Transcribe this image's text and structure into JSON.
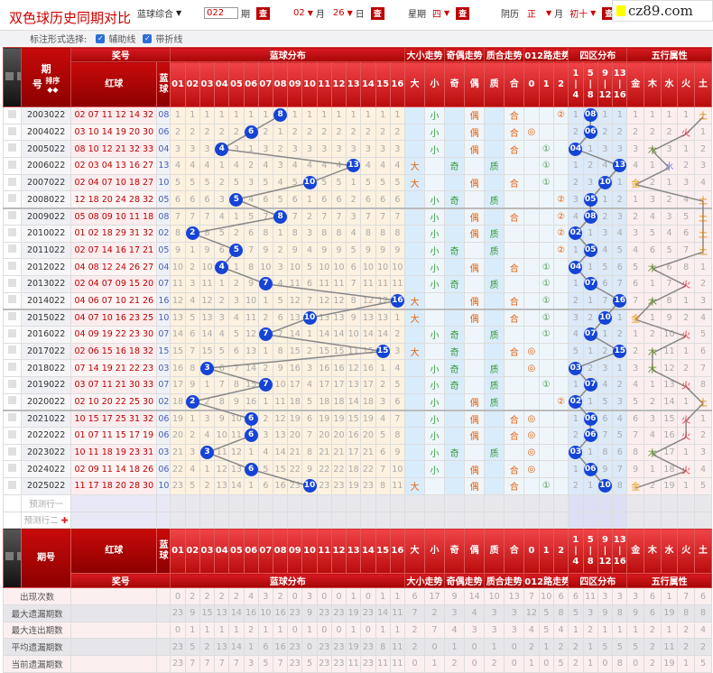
{
  "header": {
    "title": "双色球历史同期对比",
    "lottery_select": "蓝球综合",
    "period_value": "022",
    "period_label": "期",
    "query": "查",
    "month": "02",
    "month_label": "月",
    "day": "26",
    "day_label": "日",
    "weekday_label": "星期",
    "weekday": "四",
    "lunar_label": "阴历",
    "lunar_month": "正",
    "lunar_month_label": "月",
    "lunar_day": "初十",
    "logo": "cz89.com"
  },
  "options": {
    "label": "标注形式选择:",
    "aux_line": "辅助线",
    "fold_line": "带折线",
    "aux_checked": true,
    "fold_checked": true
  },
  "table": {
    "groups": {
      "period": "期号",
      "sort": "排序",
      "prize": "奖号",
      "red": "红球",
      "blue": "蓝球",
      "blue_dist": "蓝球分布",
      "size": "大小走势",
      "parity": "奇偶走势",
      "prime": "质合走势",
      "mod": "012路走势",
      "zone": "四区分布",
      "wuxing": "五行属性"
    },
    "blue_cols": [
      "01",
      "02",
      "03",
      "04",
      "05",
      "06",
      "07",
      "08",
      "09",
      "10",
      "11",
      "12",
      "13",
      "14",
      "15",
      "16"
    ],
    "size_cols": [
      "大",
      "小"
    ],
    "parity_cols": [
      "奇",
      "偶"
    ],
    "prime_cols": [
      "质",
      "合"
    ],
    "mod_cols": [
      "0",
      "1",
      "2"
    ],
    "mod_marks": [
      "◎",
      "①",
      "②"
    ],
    "zone_cols": [
      [
        "1",
        "|",
        "4"
      ],
      [
        "5",
        "|",
        "8"
      ],
      [
        "9",
        "|",
        "12"
      ],
      [
        "13",
        "|",
        "16"
      ]
    ],
    "wuxing_cols": [
      "金",
      "木",
      "水",
      "火",
      "土"
    ],
    "rows": [
      {
        "period": "2003022",
        "red": "02 07 11 12 14 32",
        "blue": "08",
        "element": "土"
      },
      {
        "period": "2004022",
        "red": "03 10 14 19 20 30",
        "blue": "06",
        "element": "火"
      },
      {
        "period": "2005022",
        "red": "08 10 12 21 32 33",
        "blue": "04",
        "element": "木"
      },
      {
        "period": "2006022",
        "red": "02 03 04 13 16 27",
        "blue": "13",
        "element": "水"
      },
      {
        "period": "2007022",
        "red": "02 04 07 10 18 27",
        "blue": "10",
        "element": "金"
      },
      {
        "period": "2008022",
        "red": "12 18 20 24 28 32",
        "blue": "05",
        "element": "土"
      },
      {
        "period": "2009022",
        "red": "05 08 09 10 11 18",
        "blue": "08",
        "element": "土"
      },
      {
        "period": "2010022",
        "red": "01 02 18 29 31 32",
        "blue": "02",
        "element": "土"
      },
      {
        "period": "2011022",
        "red": "02 07 14 16 17 21",
        "blue": "05",
        "element": "土"
      },
      {
        "period": "2012022",
        "red": "04 08 12 24 26 27",
        "blue": "04",
        "element": "木"
      },
      {
        "period": "2013022",
        "red": "02 04 07 09 15 20",
        "blue": "07",
        "element": "火"
      },
      {
        "period": "2014022",
        "red": "04 06 07 10 21 26",
        "blue": "16",
        "element": "木"
      },
      {
        "period": "2015022",
        "red": "04 07 10 16 23 25",
        "blue": "10",
        "element": "金"
      },
      {
        "period": "2016022",
        "red": "04 09 19 22 23 30",
        "blue": "07",
        "element": "火"
      },
      {
        "period": "2017022",
        "red": "02 06 15 16 18 32",
        "blue": "15",
        "element": "木"
      },
      {
        "period": "2018022",
        "red": "07 14 19 21 22 23",
        "blue": "03",
        "element": "木"
      },
      {
        "period": "2019022",
        "red": "03 07 11 21 30 33",
        "blue": "07",
        "element": "火"
      },
      {
        "period": "2020022",
        "red": "02 10 20 22 25 30",
        "blue": "02",
        "element": "土"
      },
      {
        "period": "2021022",
        "red": "10 15 17 25 31 32",
        "blue": "06",
        "element": "火"
      },
      {
        "period": "2022022",
        "red": "01 07 11 15 17 19",
        "blue": "06",
        "element": "火"
      },
      {
        "period": "2023022",
        "red": "10 11 18 19 23 31",
        "blue": "03",
        "element": "木"
      },
      {
        "period": "2024022",
        "red": "02 09 11 14 18 26",
        "blue": "06",
        "element": "火"
      },
      {
        "period": "2025022",
        "red": "11 17 18 20 28 30",
        "blue": "10",
        "element": "金"
      }
    ],
    "predict": [
      "预测行一",
      "预测行二"
    ],
    "stats": [
      {
        "label": "出现次数",
        "values": [
          0,
          2,
          2,
          2,
          2,
          4,
          3,
          2,
          0,
          3,
          0,
          0,
          1,
          0,
          1,
          1,
          6,
          17,
          9,
          14,
          10,
          13,
          7,
          10,
          6,
          6,
          11,
          3,
          3,
          3,
          6,
          1,
          7,
          6
        ]
      },
      {
        "label": "最大遗漏期数",
        "values": [
          23,
          9,
          15,
          13,
          14,
          16,
          10,
          16,
          23,
          9,
          23,
          23,
          19,
          23,
          14,
          11,
          7,
          2,
          3,
          4,
          3,
          3,
          12,
          5,
          8,
          5,
          3,
          9,
          8,
          9,
          6,
          19,
          8,
          8
        ]
      },
      {
        "label": "最大连出期数",
        "values": [
          0,
          1,
          1,
          1,
          1,
          2,
          1,
          1,
          0,
          1,
          0,
          0,
          1,
          0,
          1,
          1,
          2,
          7,
          4,
          3,
          3,
          3,
          4,
          5,
          4,
          1,
          2,
          1,
          1,
          1,
          2,
          1,
          2,
          4
        ]
      },
      {
        "label": "平均遗漏期数",
        "values": [
          23,
          5,
          2,
          13,
          14,
          1,
          6,
          16,
          23,
          0,
          23,
          23,
          19,
          23,
          8,
          11,
          2,
          0,
          1,
          0,
          1,
          0,
          2,
          1,
          2,
          2,
          1,
          5,
          5,
          5,
          2,
          11,
          2,
          2
        ]
      },
      {
        "label": "当前遗漏期数",
        "values": [
          23,
          7,
          7,
          7,
          7,
          3,
          5,
          7,
          23,
          5,
          23,
          23,
          11,
          23,
          11,
          11,
          0,
          1,
          2,
          0,
          2,
          0,
          1,
          0,
          5,
          2,
          1,
          0,
          8,
          0,
          2,
          19,
          1,
          5
        ]
      }
    ]
  },
  "colors": {
    "header_red": "#c00000",
    "ball_blue": "#1544d6",
    "big": "#e8600a",
    "small": "#3a9a3a",
    "odd": "#3a9a3a",
    "even": "#e8600a",
    "prime": "#3a9a3a",
    "composite": "#e8600a",
    "mod0": "#e8600a",
    "mod1": "#3a9a3a",
    "mod2": "#e8600a",
    "金": "#e89a00",
    "木": "#5a8a20",
    "水": "#7a80f0",
    "火": "#e8303a",
    "土": "#d88000"
  }
}
